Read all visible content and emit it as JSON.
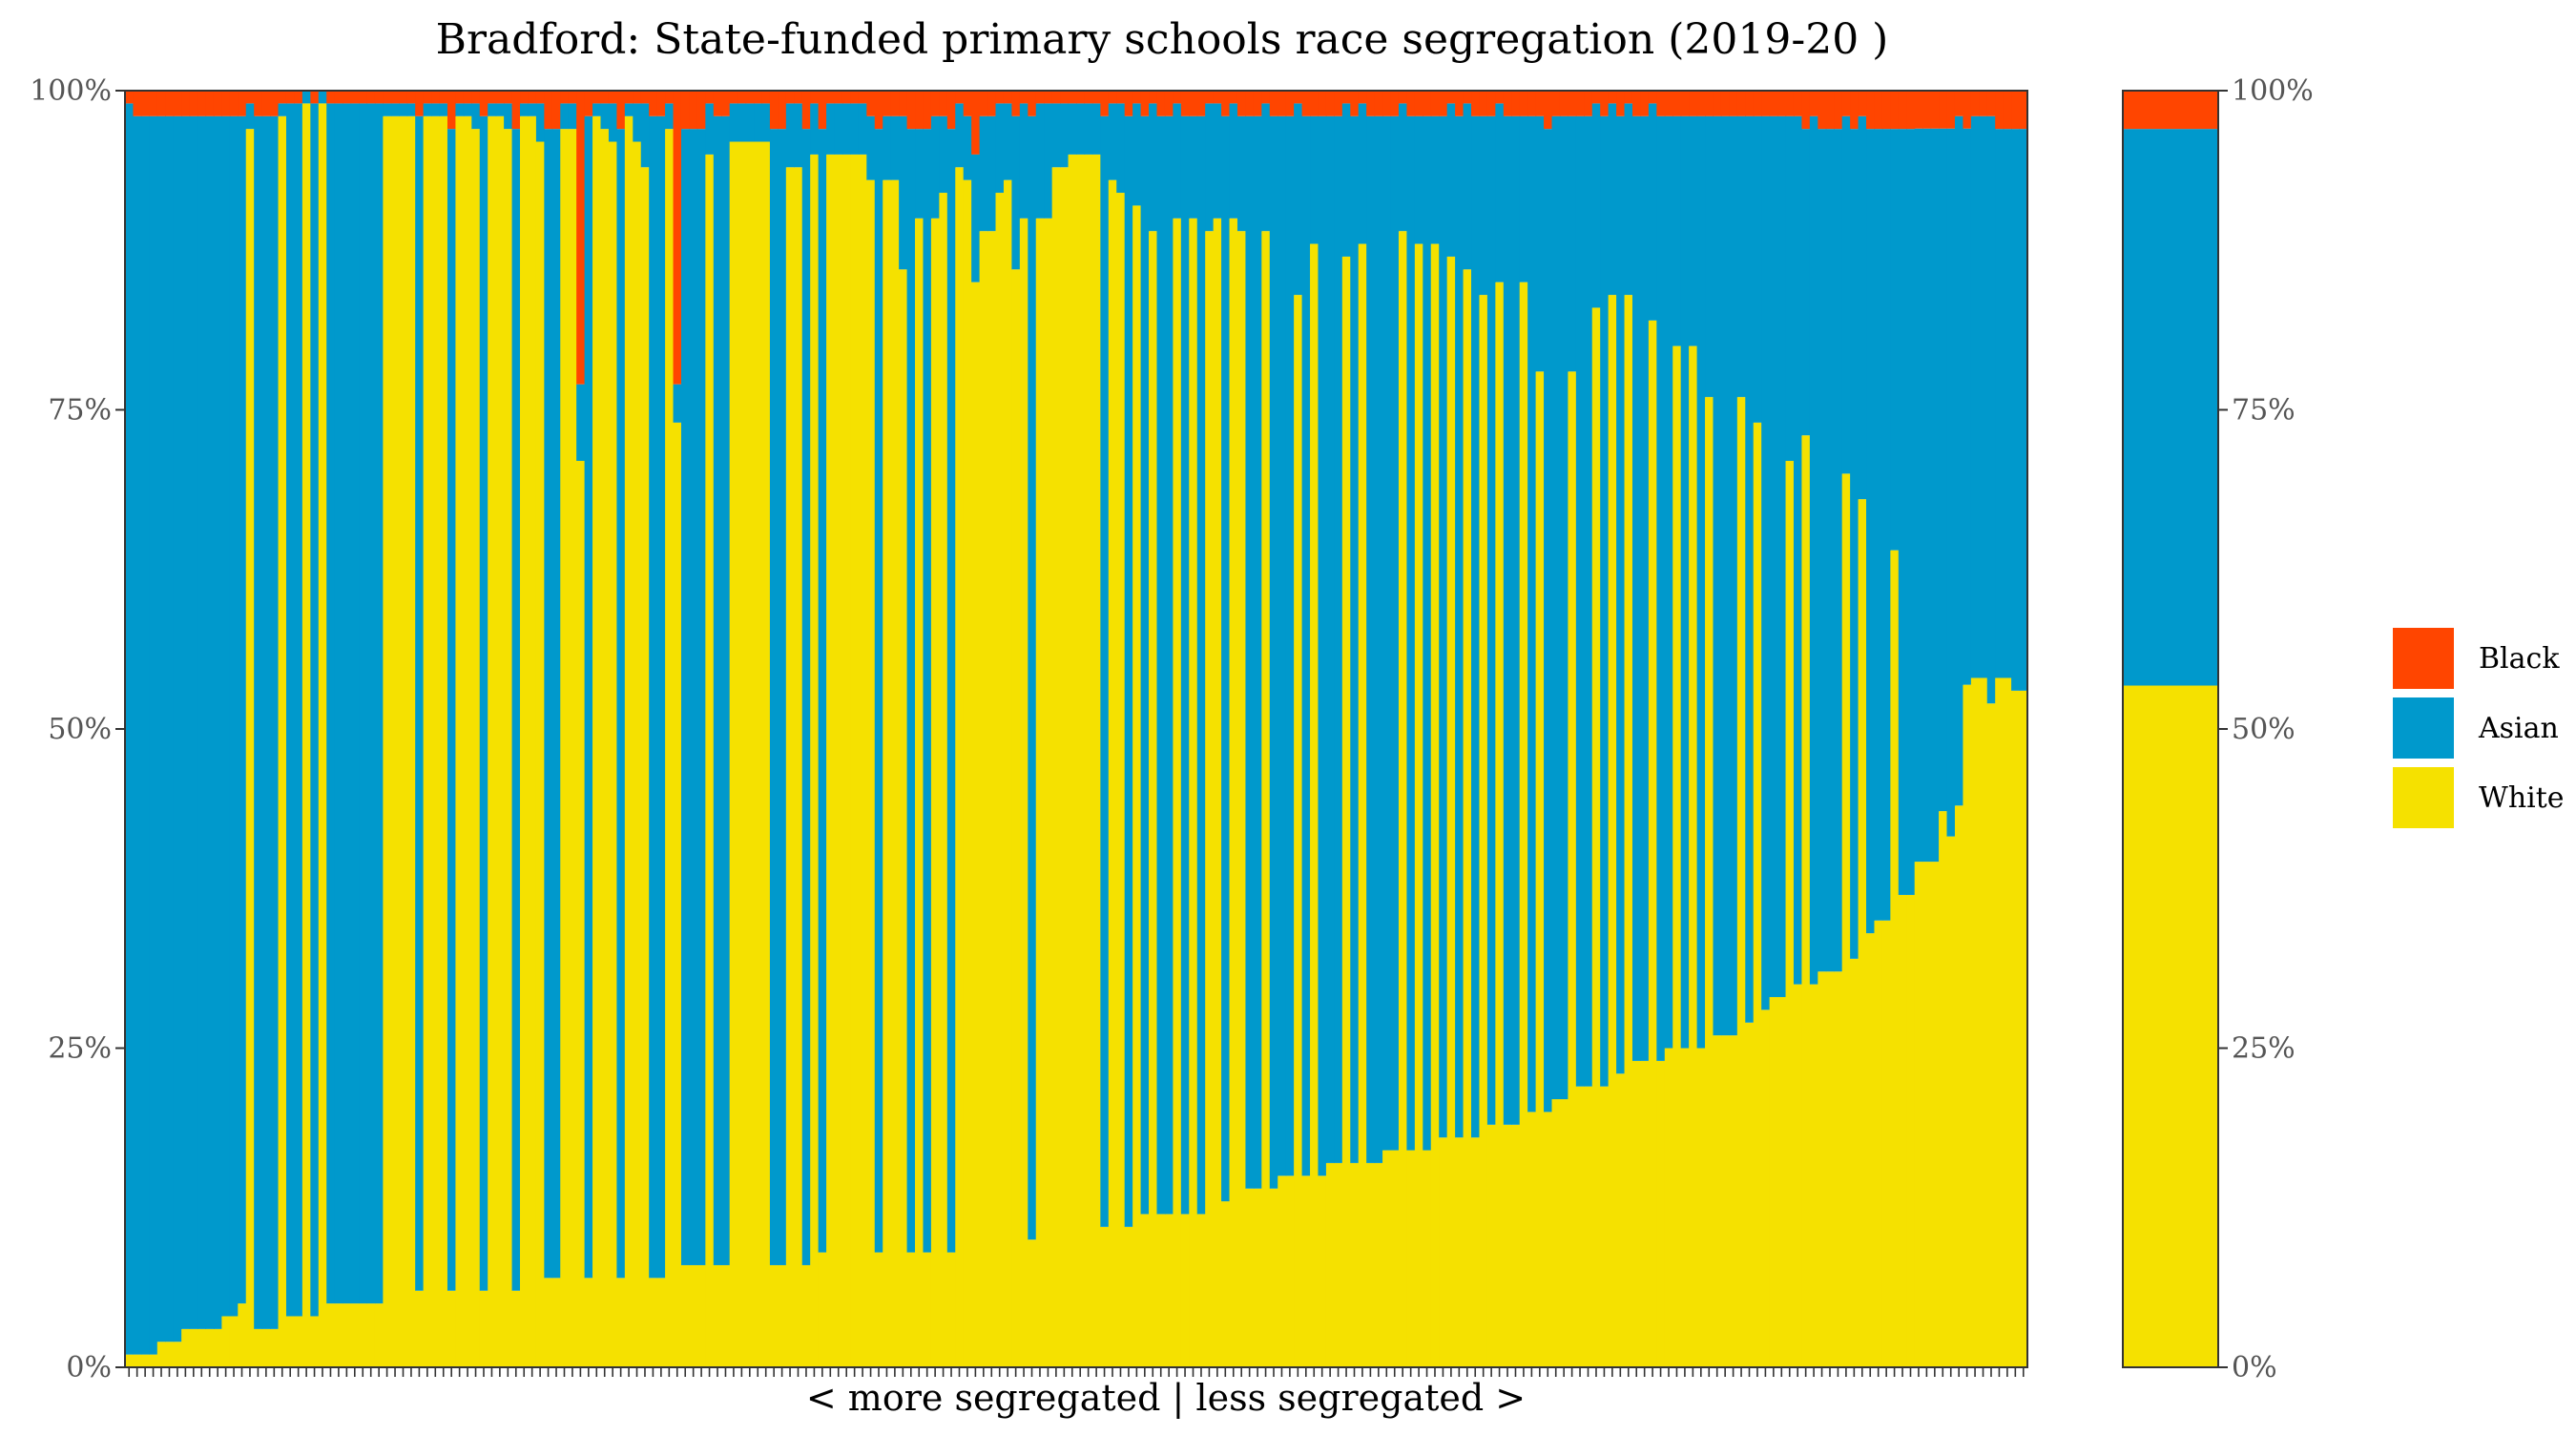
{
  "chart_data": {
    "type": "bar",
    "stacked": true,
    "title": "Bradford: State-funded primary schools race segregation (2019-20 )",
    "xlabel": "< more segregated | less segregated >",
    "ylabel": "",
    "ylim": [
      0,
      100
    ],
    "yticks": [
      "0%",
      "25%",
      "50%",
      "75%",
      "100%"
    ],
    "grid": false,
    "legend_position": "right",
    "colors": {
      "Black": "#FF4500",
      "Asian": "#0099CC",
      "White": "#F5E100"
    },
    "series": [
      {
        "name": "White",
        "values": [
          1,
          1,
          1,
          1,
          2,
          2,
          2,
          3,
          3,
          3,
          3,
          3,
          4,
          4,
          5,
          97,
          3,
          3,
          3,
          98,
          4,
          4,
          99,
          4,
          99,
          5,
          5,
          5,
          5,
          5,
          5,
          5,
          98,
          98,
          98,
          98,
          6,
          98,
          98,
          98,
          6,
          98,
          98,
          97,
          6,
          98,
          98,
          97,
          6,
          98,
          98,
          96,
          7,
          7,
          97,
          97,
          71,
          7,
          98,
          97,
          96,
          7,
          98,
          96,
          94,
          7,
          7,
          97,
          74,
          8,
          8,
          8,
          95,
          8,
          8,
          96,
          96,
          96,
          96,
          96,
          8,
          8,
          94,
          94,
          8,
          95,
          9,
          95,
          95,
          95,
          95,
          95,
          93,
          9,
          93,
          93,
          86,
          9,
          90,
          9,
          90,
          92,
          9,
          94,
          93,
          85,
          89,
          89,
          92,
          93,
          86,
          90,
          10,
          90,
          90,
          94,
          94,
          95,
          95,
          95,
          95,
          11,
          93,
          92,
          11,
          91,
          12,
          89,
          12,
          12,
          90,
          12,
          90,
          12,
          89,
          90,
          13,
          90,
          89,
          14,
          14,
          89,
          14,
          15,
          15,
          84,
          15,
          88,
          15,
          16,
          16,
          87,
          16,
          88,
          16,
          16,
          17,
          17,
          89,
          17,
          88,
          17,
          88,
          18,
          87,
          18,
          86,
          18,
          84,
          19,
          85,
          19,
          19,
          85,
          20,
          78,
          20,
          21,
          21,
          78,
          22,
          22,
          83,
          22,
          84,
          23,
          84,
          24,
          24,
          82,
          24,
          25,
          80,
          25,
          80,
          25,
          76,
          26,
          26,
          26,
          76,
          27,
          74,
          28,
          29,
          29,
          71,
          30,
          73,
          30,
          31,
          31,
          31,
          70,
          32,
          68,
          34,
          35,
          35,
          64,
          37,
          37,
          40,
          40,
          40,
          44,
          42,
          44,
          54,
          54,
          54,
          52,
          54,
          54,
          53,
          53
        ]
      },
      {
        "name": "Asian",
        "values": [
          98,
          97,
          97,
          97,
          96,
          96,
          96,
          95,
          95,
          95,
          95,
          95,
          94,
          94,
          93,
          2,
          95,
          95,
          95,
          1,
          95,
          95,
          1,
          95,
          1,
          94,
          94,
          94,
          94,
          94,
          94,
          94,
          1,
          1,
          1,
          1,
          92,
          1,
          1,
          1,
          91,
          1,
          1,
          2,
          92,
          1,
          1,
          2,
          91,
          1,
          1,
          3,
          90,
          90,
          2,
          2,
          6,
          91,
          1,
          2,
          3,
          90,
          1,
          3,
          5,
          91,
          91,
          2,
          3,
          89,
          89,
          89,
          4,
          90,
          90,
          3,
          3,
          3,
          3,
          3,
          89,
          89,
          5,
          5,
          89,
          4,
          88,
          4,
          4,
          4,
          4,
          4,
          5,
          88,
          5,
          5,
          12,
          88,
          7,
          88,
          8,
          6,
          88,
          5,
          5,
          10,
          9,
          9,
          7,
          6,
          12,
          9,
          88,
          9,
          9,
          5,
          5,
          4,
          4,
          4,
          4,
          87,
          6,
          7,
          87,
          8,
          86,
          10,
          86,
          86,
          9,
          86,
          8,
          86,
          10,
          9,
          85,
          9,
          9,
          84,
          84,
          10,
          84,
          83,
          83,
          15,
          83,
          10,
          83,
          82,
          82,
          12,
          82,
          11,
          82,
          82,
          81,
          81,
          10,
          81,
          10,
          81,
          10,
          80,
          12,
          80,
          13,
          80,
          14,
          79,
          14,
          79,
          79,
          13,
          78,
          20,
          77,
          77,
          77,
          20,
          76,
          76,
          16,
          76,
          15,
          75,
          15,
          74,
          74,
          17,
          74,
          73,
          18,
          73,
          18,
          73,
          22,
          72,
          72,
          72,
          22,
          71,
          24,
          70,
          69,
          69,
          27,
          68,
          24,
          68,
          66,
          66,
          66,
          28,
          65,
          30,
          63,
          62,
          62,
          33,
          60,
          60,
          58,
          58,
          58,
          54,
          56,
          54,
          44,
          44,
          44,
          46,
          43,
          43,
          44,
          44
        ]
      },
      {
        "name": "Black",
        "values": [
          1,
          2,
          2,
          2,
          2,
          2,
          2,
          2,
          2,
          2,
          2,
          2,
          2,
          2,
          2,
          1,
          2,
          2,
          2,
          1,
          1,
          1,
          0,
          1,
          0,
          1,
          1,
          1,
          1,
          1,
          1,
          1,
          1,
          1,
          1,
          1,
          2,
          1,
          1,
          1,
          3,
          1,
          1,
          1,
          2,
          1,
          1,
          1,
          3,
          1,
          1,
          1,
          3,
          3,
          1,
          1,
          23,
          2,
          1,
          1,
          1,
          3,
          1,
          1,
          1,
          2,
          2,
          1,
          23,
          3,
          3,
          3,
          1,
          2,
          2,
          1,
          1,
          1,
          1,
          1,
          3,
          3,
          1,
          1,
          3,
          1,
          3,
          1,
          1,
          1,
          1,
          1,
          2,
          3,
          2,
          2,
          2,
          3,
          3,
          3,
          2,
          2,
          3,
          1,
          2,
          5,
          2,
          2,
          1,
          1,
          2,
          1,
          2,
          1,
          1,
          1,
          1,
          1,
          1,
          1,
          1,
          2,
          1,
          1,
          2,
          1,
          2,
          1,
          2,
          2,
          1,
          2,
          2,
          2,
          1,
          1,
          2,
          1,
          2,
          2,
          2,
          1,
          2,
          2,
          2,
          1,
          2,
          2,
          2,
          2,
          2,
          1,
          2,
          1,
          2,
          2,
          2,
          2,
          1,
          2,
          2,
          2,
          2,
          2,
          1,
          2,
          1,
          2,
          2,
          2,
          1,
          2,
          2,
          2,
          2,
          2,
          3,
          2,
          2,
          2,
          2,
          2,
          1,
          2,
          1,
          2,
          1,
          2,
          2,
          1,
          2,
          2,
          2,
          2,
          2,
          2,
          2,
          2,
          2,
          2,
          2,
          2,
          2,
          2,
          2,
          2,
          2,
          2,
          3,
          2,
          3,
          3,
          3,
          2,
          3,
          2,
          3,
          3,
          3,
          3,
          3,
          3,
          3,
          3,
          3,
          3,
          3,
          2,
          3,
          2,
          2,
          2,
          3,
          3,
          3,
          3
        ]
      },
      {
        "name_hidden": "",
        "values": []
      }
    ],
    "summary_bar": {
      "White": 53.4,
      "Asian": 43.6,
      "Black": 3.0
    },
    "legend_order": [
      "Black",
      "Asian",
      "White"
    ]
  }
}
